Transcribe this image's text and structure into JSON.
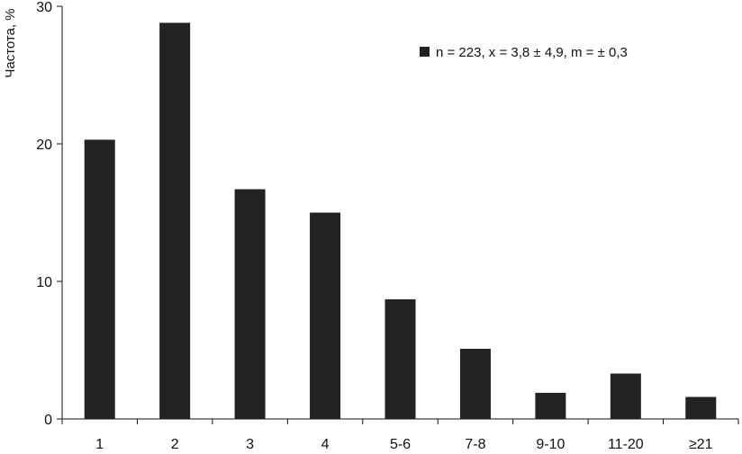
{
  "chart_data": {
    "type": "bar",
    "title": "",
    "xlabel": "",
    "ylabel": "Частота, %",
    "categories": [
      "1",
      "2",
      "3",
      "4",
      "5-6",
      "7-8",
      "9-10",
      "11-20",
      "≥21"
    ],
    "series": [
      {
        "name": "n = 223, x = 3,8 ± 4,9, m = ± 0,3",
        "values": [
          20.3,
          28.8,
          16.7,
          15.0,
          8.7,
          5.1,
          1.9,
          3.3,
          1.6
        ],
        "color": "#222222"
      }
    ],
    "ylim": [
      0,
      30
    ],
    "yticks": [
      0,
      10,
      20,
      30
    ],
    "grid": false,
    "legend_position": "top-right"
  }
}
